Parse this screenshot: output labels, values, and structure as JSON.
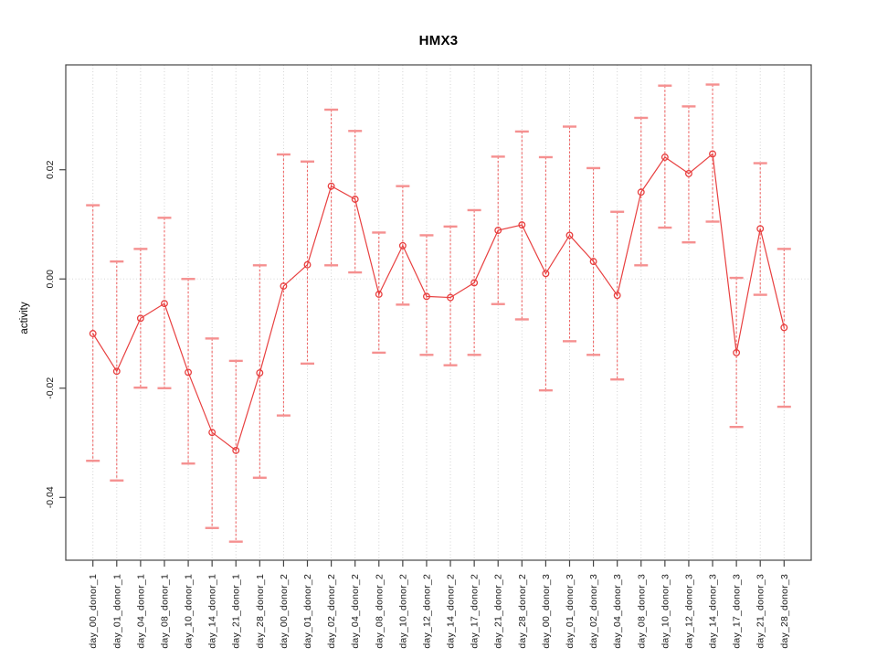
{
  "chart_data": {
    "type": "line",
    "title": "HMX3",
    "xlabel": "",
    "ylabel": "activity",
    "legend_position": "none",
    "grid": "dotted vertical line at every category; dotted horizontal line at y=0",
    "marker": "open-circle",
    "error_bars": true,
    "ylim": [
      -0.0515,
      0.0392
    ],
    "yticks": {
      "values": [
        0.02,
        0.0,
        -0.02,
        -0.04
      ],
      "labels": [
        "0.02",
        "0.00",
        "-0.02",
        "-0.04"
      ]
    },
    "categories": [
      "day_00_donor_1",
      "day_01_donor_1",
      "day_04_donor_1",
      "day_08_donor_1",
      "day_10_donor_1",
      "day_14_donor_1",
      "day_21_donor_1",
      "day_28_donor_1",
      "day_00_donor_2",
      "day_01_donor_2",
      "day_02_donor_2",
      "day_04_donor_2",
      "day_08_donor_2",
      "day_10_donor_2",
      "day_12_donor_2",
      "day_14_donor_2",
      "day_17_donor_2",
      "day_21_donor_2",
      "day_28_donor_2",
      "day_00_donor_3",
      "day_01_donor_3",
      "day_02_donor_3",
      "day_04_donor_3",
      "day_08_donor_3",
      "day_10_donor_3",
      "day_12_donor_3",
      "day_14_donor_3",
      "day_17_donor_3",
      "day_21_donor_3",
      "day_28_donor_3"
    ],
    "series": [
      {
        "name": "activity",
        "values": [
          -0.01,
          -0.0169,
          -0.0072,
          -0.0045,
          -0.0171,
          -0.0281,
          -0.0314,
          -0.0172,
          -0.0013,
          0.0026,
          0.017,
          0.0146,
          -0.0028,
          0.0061,
          -0.0032,
          -0.0034,
          -0.0007,
          0.0089,
          0.0099,
          0.001,
          0.008,
          0.0032,
          -0.003,
          0.0159,
          0.0223,
          0.0193,
          0.0229,
          -0.0135,
          0.0092,
          -0.0089
        ],
        "lower": [
          -0.0333,
          -0.0369,
          -0.0199,
          -0.02,
          -0.0338,
          -0.0456,
          -0.0481,
          -0.0364,
          -0.025,
          -0.0155,
          0.0025,
          0.0012,
          -0.0135,
          -0.0047,
          -0.0139,
          -0.0158,
          -0.0139,
          -0.0046,
          -0.0074,
          -0.0204,
          -0.0114,
          -0.0139,
          -0.0184,
          0.0025,
          0.0094,
          0.0067,
          0.0105,
          -0.0271,
          -0.0029,
          -0.0234
        ],
        "upper": [
          0.0135,
          0.0032,
          0.0055,
          0.0112,
          0.0,
          -0.0109,
          -0.015,
          0.0025,
          0.0228,
          0.0215,
          0.031,
          0.0271,
          0.0085,
          0.017,
          0.008,
          0.0096,
          0.0126,
          0.0224,
          0.027,
          0.0223,
          0.0279,
          0.0203,
          0.0123,
          0.0295,
          0.0354,
          0.0316,
          0.0356,
          0.0002,
          0.0212,
          0.0055
        ]
      }
    ],
    "colors": {
      "series_line": "#e84040",
      "point_stroke": "#e84040",
      "error_bar": "#ef6a6a",
      "error_cap": "#f59090",
      "grid": "#d2d2d2",
      "zero_line": "#d8d8d8",
      "axis": "#454545",
      "tick_label": "#1a1a1a"
    }
  }
}
